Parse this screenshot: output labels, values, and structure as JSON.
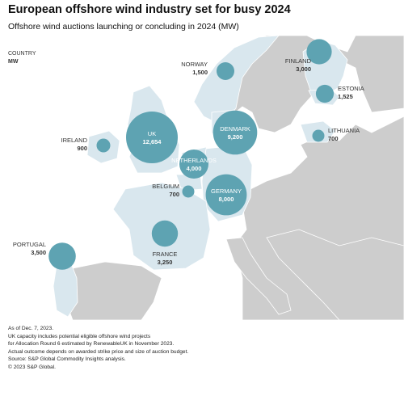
{
  "title": "European offshore wind industry set for busy 2024",
  "subtitle": "Offshore wind auctions launching or concluding in 2024 (MW)",
  "legend": {
    "line1": "COUNTRY",
    "line2": "MW"
  },
  "colors": {
    "sea": "#ffffff",
    "highlight_land": "#d9e7ee",
    "other_land": "#cdcdcd",
    "bubble": "#5ea3b2",
    "bubble_label": "#ffffff",
    "outside_label": "#333333"
  },
  "countries": [
    {
      "name": "UK",
      "mw": "12,654",
      "value": 12654
    },
    {
      "name": "DENMARK",
      "mw": "9,200",
      "value": 9200
    },
    {
      "name": "GERMANY",
      "mw": "8,000",
      "value": 8000
    },
    {
      "name": "NETHERLANDS",
      "mw": "4,000",
      "value": 4000
    },
    {
      "name": "PORTUGAL",
      "mw": "3,500",
      "value": 3500
    },
    {
      "name": "FRANCE",
      "mw": "3,250",
      "value": 3250
    },
    {
      "name": "FINLAND",
      "mw": "3,000",
      "value": 3000
    },
    {
      "name": "ESTONIA",
      "mw": "1,525",
      "value": 1525
    },
    {
      "name": "NORWAY",
      "mw": "1,500",
      "value": 1500
    },
    {
      "name": "IRELAND",
      "mw": "900",
      "value": 900
    },
    {
      "name": "BELGIUM",
      "mw": "700",
      "value": 700
    },
    {
      "name": "LITHUANIA",
      "mw": "700",
      "value": 700
    }
  ],
  "footer": [
    "As of Dec. 7, 2023.",
    "UK capacity includes potential eligible offshore wind projects",
    "for Allocation Round 6 estimated by RenewableUK in November 2023.",
    "Actual outcome depends on awarded strike price and size of auction budget.",
    "Source: S&P Global Commodity Insights analysis.",
    "© 2023 S&P Global."
  ]
}
